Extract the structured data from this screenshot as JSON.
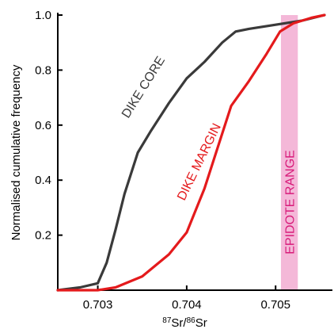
{
  "chart_data": {
    "type": "line",
    "xlabel_parts": {
      "sup1": "87",
      "main1": "Sr/",
      "sup2": "86",
      "main2": "Sr"
    },
    "ylabel": "Normalised cumulative frequency",
    "xlim": [
      0.70255,
      0.70555
    ],
    "ylim": [
      0,
      1.0
    ],
    "x_ticks": [
      0.703,
      0.704,
      0.705
    ],
    "x_tick_labels": [
      "0.703",
      "0.704",
      "0.705"
    ],
    "y_ticks": [
      0.2,
      0.4,
      0.6,
      0.8,
      1.0
    ],
    "y_tick_labels": [
      "0.2",
      "0.4",
      "0.6",
      "0.8",
      "1.0"
    ],
    "band": {
      "label": "EPIDOTE RANGE",
      "x_start": 0.70506,
      "x_end": 0.70525,
      "color": "#f4b8d8",
      "label_color": "#d81b7a"
    },
    "series": [
      {
        "name": "DIKE CORE",
        "color": "#3a3a3a",
        "x": [
          0.70255,
          0.7028,
          0.703,
          0.7031,
          0.7032,
          0.7033,
          0.70345,
          0.7036,
          0.7038,
          0.704,
          0.7042,
          0.7044,
          0.70455,
          0.7047,
          0.7049,
          0.7051,
          0.7053,
          0.70555
        ],
        "y": [
          0.0,
          0.01,
          0.025,
          0.1,
          0.22,
          0.35,
          0.5,
          0.58,
          0.68,
          0.77,
          0.83,
          0.9,
          0.94,
          0.95,
          0.96,
          0.97,
          0.98,
          1.0
        ]
      },
      {
        "name": "DIKE MARGIN",
        "color": "#e41a1c",
        "x": [
          0.70255,
          0.703,
          0.7032,
          0.7035,
          0.7038,
          0.704,
          0.7042,
          0.70435,
          0.7045,
          0.7047,
          0.7049,
          0.70505,
          0.7052,
          0.7054,
          0.70555
        ],
        "y": [
          0.0,
          0.0,
          0.01,
          0.05,
          0.13,
          0.21,
          0.37,
          0.52,
          0.67,
          0.76,
          0.86,
          0.94,
          0.97,
          0.99,
          1.0
        ]
      }
    ]
  }
}
